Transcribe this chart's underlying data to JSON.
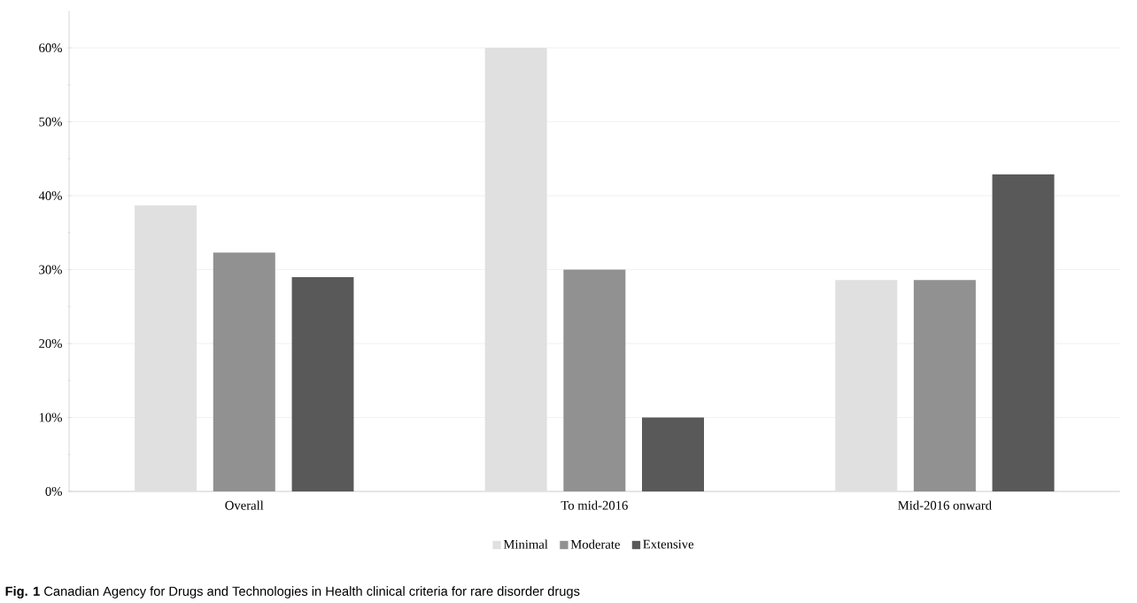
{
  "chart_data": {
    "type": "bar",
    "categories": [
      "Overall",
      "To mid-2016",
      "Mid-2016 onward"
    ],
    "series": [
      {
        "name": "Minimal",
        "color": "#e0e0e0",
        "values": [
          38.7,
          60,
          28.6
        ]
      },
      {
        "name": "Moderate",
        "color": "#919191",
        "values": [
          32.3,
          30,
          28.6
        ]
      },
      {
        "name": "Extensive",
        "color": "#595959",
        "values": [
          29.0,
          10,
          42.9
        ]
      }
    ],
    "ylim": [
      0,
      65
    ],
    "yticks": [
      {
        "value": 0,
        "label": "0%"
      },
      {
        "value": 10,
        "label": "10%"
      },
      {
        "value": 20,
        "label": "20%"
      },
      {
        "value": 30,
        "label": "30%"
      },
      {
        "value": 40,
        "label": "40%"
      },
      {
        "value": 50,
        "label": "50%"
      },
      {
        "value": 60,
        "label": "60%"
      }
    ],
    "grid": "y",
    "legend": "bottom",
    "annotations": [
      "**Fig. 1** Canadian Agency for Drugs and Technologies in Health clinical criteria for rare disorder drugs"
    ]
  }
}
